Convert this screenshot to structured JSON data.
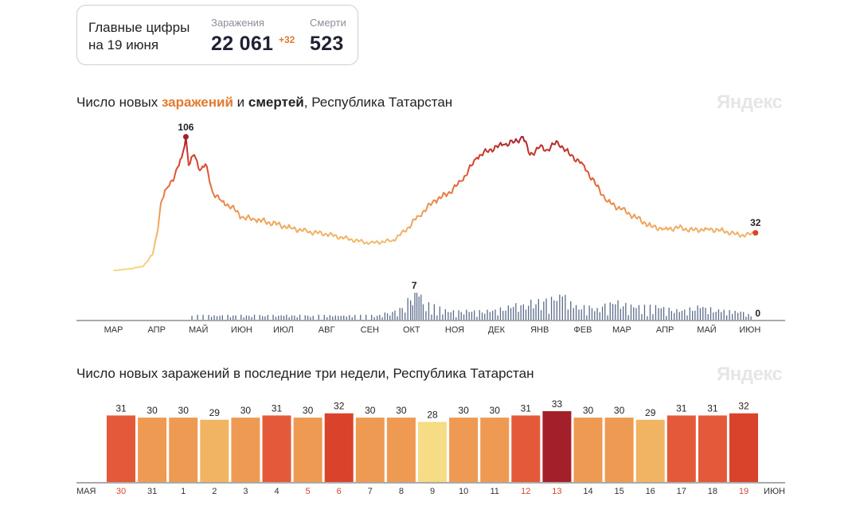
{
  "summary": {
    "title_line1": "Главные цифры",
    "title_line2": "на 19 июня",
    "infections_label": "Заражения",
    "infections_value": "22 061",
    "infections_delta": "+32",
    "deaths_label": "Смерти",
    "deaths_value": "523"
  },
  "main_chart": {
    "title_prefix": "Число новых ",
    "title_infections": "заражений",
    "title_and": " и ",
    "title_deaths": "смертей",
    "title_suffix": ", Республика Татарстан",
    "watermark": "Яндекс"
  },
  "recent_chart": {
    "title": "Число новых заражений в последние три недели, Республика Татарстан",
    "watermark": "Яндекс"
  },
  "colors": {
    "low": "#f7dc86",
    "mid": "#ee9a52",
    "high": "#d9432c",
    "max": "#a3202b",
    "deaths_bar": "#5b6b8c",
    "weekend_label": "#d9432c",
    "axis": "#555555"
  },
  "chart_data": [
    {
      "type": "line",
      "series": [
        {
          "name": "заражений",
          "points": [
            {
              "x": "2020-03-15",
              "y": 3
            },
            {
              "x": "2020-03-25",
              "y": 4
            },
            {
              "x": "2020-04-05",
              "y": 6
            },
            {
              "x": "2020-04-12",
              "y": 15
            },
            {
              "x": "2020-04-15",
              "y": 30
            },
            {
              "x": "2020-04-18",
              "y": 55
            },
            {
              "x": "2020-04-22",
              "y": 66
            },
            {
              "x": "2020-04-28",
              "y": 76
            },
            {
              "x": "2020-05-03",
              "y": 90
            },
            {
              "x": "2020-05-06",
              "y": 106
            },
            {
              "x": "2020-05-08",
              "y": 84
            },
            {
              "x": "2020-05-12",
              "y": 92
            },
            {
              "x": "2020-05-16",
              "y": 80
            },
            {
              "x": "2020-05-20",
              "y": 85
            },
            {
              "x": "2020-05-25",
              "y": 64
            },
            {
              "x": "2020-06-01",
              "y": 56
            },
            {
              "x": "2020-06-08",
              "y": 52
            },
            {
              "x": "2020-06-15",
              "y": 44
            },
            {
              "x": "2020-06-25",
              "y": 42
            },
            {
              "x": "2020-07-05",
              "y": 40
            },
            {
              "x": "2020-07-20",
              "y": 36
            },
            {
              "x": "2020-08-01",
              "y": 33
            },
            {
              "x": "2020-08-15",
              "y": 31
            },
            {
              "x": "2020-09-01",
              "y": 27
            },
            {
              "x": "2020-09-15",
              "y": 24
            },
            {
              "x": "2020-10-01",
              "y": 26
            },
            {
              "x": "2020-10-10",
              "y": 33
            },
            {
              "x": "2020-10-20",
              "y": 45
            },
            {
              "x": "2020-11-01",
              "y": 57
            },
            {
              "x": "2020-11-10",
              "y": 62
            },
            {
              "x": "2020-11-20",
              "y": 72
            },
            {
              "x": "2020-12-01",
              "y": 90
            },
            {
              "x": "2020-12-10",
              "y": 96
            },
            {
              "x": "2020-12-20",
              "y": 100
            },
            {
              "x": "2020-12-28",
              "y": 102
            },
            {
              "x": "2021-01-03",
              "y": 106
            },
            {
              "x": "2021-01-08",
              "y": 92
            },
            {
              "x": "2021-01-15",
              "y": 98
            },
            {
              "x": "2021-01-20",
              "y": 96
            },
            {
              "x": "2021-01-28",
              "y": 102
            },
            {
              "x": "2021-02-05",
              "y": 93
            },
            {
              "x": "2021-02-15",
              "y": 85
            },
            {
              "x": "2021-02-25",
              "y": 68
            },
            {
              "x": "2021-03-05",
              "y": 56
            },
            {
              "x": "2021-03-15",
              "y": 50
            },
            {
              "x": "2021-03-25",
              "y": 44
            },
            {
              "x": "2021-04-05",
              "y": 37
            },
            {
              "x": "2021-04-15",
              "y": 35
            },
            {
              "x": "2021-04-25",
              "y": 36
            },
            {
              "x": "2021-05-05",
              "y": 34
            },
            {
              "x": "2021-05-15",
              "y": 35
            },
            {
              "x": "2021-05-25",
              "y": 34
            },
            {
              "x": "2021-06-05",
              "y": 31
            },
            {
              "x": "2021-06-12",
              "y": 30
            },
            {
              "x": "2021-06-19",
              "y": 32
            }
          ],
          "peak_label": "106",
          "last_label": "32"
        },
        {
          "name": "смертей",
          "type": "bar",
          "points": [
            {
              "x": "2020-05-10",
              "y": 1
            },
            {
              "x": "2020-05-30",
              "y": 1
            },
            {
              "x": "2020-06-20",
              "y": 1
            },
            {
              "x": "2020-07-15",
              "y": 1
            },
            {
              "x": "2020-08-05",
              "y": 1
            },
            {
              "x": "2020-09-20",
              "y": 1
            },
            {
              "x": "2020-10-01",
              "y": 2
            },
            {
              "x": "2020-10-08",
              "y": 3
            },
            {
              "x": "2020-10-14",
              "y": 5
            },
            {
              "x": "2020-10-17",
              "y": 7
            },
            {
              "x": "2020-10-20",
              "y": 6
            },
            {
              "x": "2020-10-23",
              "y": 4
            },
            {
              "x": "2020-11-10",
              "y": 2
            },
            {
              "x": "2020-11-25",
              "y": 2
            },
            {
              "x": "2020-12-10",
              "y": 2
            },
            {
              "x": "2020-12-25",
              "y": 3
            },
            {
              "x": "2021-01-03",
              "y": 4
            },
            {
              "x": "2021-01-12",
              "y": 4
            },
            {
              "x": "2021-01-25",
              "y": 5
            },
            {
              "x": "2021-01-31",
              "y": 6
            },
            {
              "x": "2021-02-08",
              "y": 3
            },
            {
              "x": "2021-02-25",
              "y": 3
            },
            {
              "x": "2021-03-10",
              "y": 4
            },
            {
              "x": "2021-03-25",
              "y": 3
            },
            {
              "x": "2021-04-10",
              "y": 3
            },
            {
              "x": "2021-04-25",
              "y": 2
            },
            {
              "x": "2021-05-10",
              "y": 3
            },
            {
              "x": "2021-05-25",
              "y": 2
            },
            {
              "x": "2021-06-10",
              "y": 2
            },
            {
              "x": "2021-06-19",
              "y": 0
            }
          ],
          "peak_label": "7",
          "last_label": "0"
        }
      ],
      "month_ticks": [
        {
          "x": "2020-03-15",
          "label": "МАР"
        },
        {
          "x": "2020-04-15",
          "label": "АПР"
        },
        {
          "x": "2020-05-15",
          "label": "МАЙ"
        },
        {
          "x": "2020-06-15",
          "label": "ИЮН"
        },
        {
          "x": "2020-07-15",
          "label": "ИЮЛ"
        },
        {
          "x": "2020-08-15",
          "label": "АВГ"
        },
        {
          "x": "2020-09-15",
          "label": "СЕН"
        },
        {
          "x": "2020-10-15",
          "label": "ОКТ"
        },
        {
          "x": "2020-11-15",
          "label": "НОЯ"
        },
        {
          "x": "2020-12-15",
          "label": "ДЕК"
        },
        {
          "x": "2021-01-15",
          "label": "ЯНВ"
        },
        {
          "x": "2021-02-15",
          "label": "ФЕВ"
        },
        {
          "x": "2021-03-15",
          "label": "МАР"
        },
        {
          "x": "2021-04-15",
          "label": "АПР"
        },
        {
          "x": "2021-05-15",
          "label": "МАЙ"
        },
        {
          "x": "2021-06-15",
          "label": "ИЮН"
        }
      ],
      "xlim": [
        "2020-03-01",
        "2021-06-30"
      ],
      "ylim_infections": [
        0,
        106
      ],
      "ylim_deaths": [
        0,
        7
      ],
      "grid": false,
      "legend": "in title"
    },
    {
      "type": "bar",
      "start_label": "МАЯ",
      "end_label": "ИЮН",
      "categories": [
        "30",
        "31",
        "1",
        "2",
        "3",
        "4",
        "5",
        "6",
        "7",
        "8",
        "9",
        "10",
        "11",
        "12",
        "13",
        "14",
        "15",
        "16",
        "17",
        "18",
        "19"
      ],
      "values": [
        31,
        30,
        30,
        29,
        30,
        31,
        30,
        32,
        30,
        30,
        28,
        30,
        30,
        31,
        33,
        30,
        30,
        29,
        31,
        31,
        32
      ],
      "weekend_days": [
        "30",
        "5",
        "6",
        "12",
        "13",
        "19"
      ],
      "ylim": [
        0,
        33
      ],
      "grid": false
    }
  ]
}
